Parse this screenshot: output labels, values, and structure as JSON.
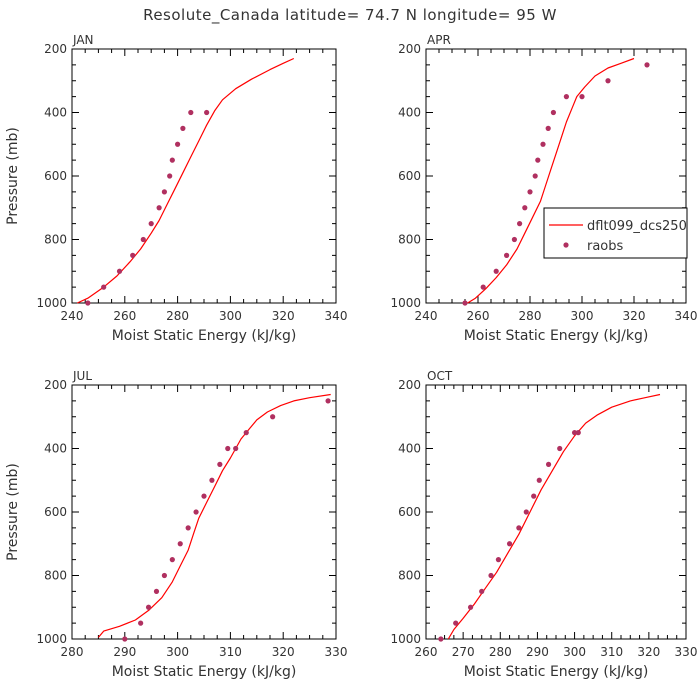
{
  "title": "Resolute_Canada  latitude= 74.7 N longitude= 95 W",
  "legend": {
    "model": "dflt099_dcs250",
    "obs": "raobs"
  },
  "colors": {
    "model": "#ff0000",
    "obs": "#b03060",
    "axis": "#000000",
    "text": "#333333"
  },
  "chart_data": [
    {
      "type": "line",
      "panel": "JAN",
      "xlabel": "Moist Static Energy (kJ/kg)",
      "ylabel": "Pressure (mb)",
      "xlim": [
        240,
        340
      ],
      "ylim": [
        200,
        1000
      ],
      "y_inverted": true,
      "xticks": [
        240,
        260,
        280,
        300,
        320,
        340
      ],
      "yticks": [
        200,
        400,
        600,
        800,
        1000
      ],
      "grid": false,
      "series": [
        {
          "name": "dflt099_dcs250",
          "style": "line",
          "x": [
            242,
            246,
            252,
            257,
            262,
            266,
            270,
            273,
            276,
            279,
            282,
            285,
            288,
            291,
            294,
            297,
            302,
            308,
            315,
            320,
            324
          ],
          "y": [
            1000,
            985,
            950,
            915,
            870,
            830,
            780,
            740,
            690,
            640,
            590,
            540,
            490,
            440,
            395,
            360,
            325,
            295,
            265,
            245,
            230
          ]
        },
        {
          "name": "raobs",
          "style": "marker",
          "x": [
            246,
            252,
            258,
            263,
            267,
            270,
            273,
            275,
            277,
            278,
            280,
            282,
            285,
            291
          ],
          "y": [
            1000,
            950,
            900,
            850,
            800,
            750,
            700,
            650,
            600,
            550,
            500,
            450,
            400,
            400
          ]
        }
      ]
    },
    {
      "type": "line",
      "panel": "APR",
      "xlabel": "Moist Static Energy (kJ/kg)",
      "ylabel": "",
      "xlim": [
        240,
        340
      ],
      "ylim": [
        200,
        1000
      ],
      "y_inverted": true,
      "xticks": [
        240,
        260,
        280,
        300,
        320,
        340
      ],
      "yticks": [
        200,
        400,
        600,
        800,
        1000
      ],
      "grid": false,
      "legend_position": "right",
      "series": [
        {
          "name": "dflt099_dcs250",
          "style": "line",
          "x": [
            256,
            259,
            263,
            267,
            271,
            275,
            278,
            281,
            284,
            286,
            288,
            290,
            292,
            294,
            296,
            298,
            301,
            305,
            310,
            315,
            320
          ],
          "y": [
            1000,
            985,
            955,
            920,
            880,
            830,
            780,
            730,
            680,
            630,
            580,
            530,
            480,
            430,
            390,
            350,
            320,
            285,
            260,
            245,
            230
          ]
        },
        {
          "name": "raobs",
          "style": "marker",
          "x": [
            255,
            262,
            267,
            271,
            274,
            276,
            278,
            280,
            282,
            283,
            285,
            287,
            289,
            294,
            300,
            310,
            325
          ],
          "y": [
            1000,
            950,
            900,
            850,
            800,
            750,
            700,
            650,
            600,
            550,
            500,
            450,
            400,
            350,
            350,
            300,
            250
          ]
        }
      ]
    },
    {
      "type": "line",
      "panel": "JUL",
      "xlabel": "Moist Static Energy (kJ/kg)",
      "ylabel": "Pressure (mb)",
      "xlim": [
        280,
        330
      ],
      "ylim": [
        200,
        1000
      ],
      "y_inverted": true,
      "xticks": [
        280,
        290,
        300,
        310,
        320,
        330
      ],
      "yticks": [
        200,
        400,
        600,
        800,
        1000
      ],
      "grid": false,
      "series": [
        {
          "name": "dflt099_dcs250",
          "style": "line",
          "x": [
            285,
            286,
            289,
            292,
            294.5,
            297,
            299,
            300.5,
            302,
            303,
            304,
            305.5,
            307,
            308.5,
            310,
            311,
            312,
            313.5,
            315,
            317,
            319.5,
            322,
            325,
            329
          ],
          "y": [
            995,
            975,
            960,
            940,
            910,
            870,
            820,
            770,
            720,
            670,
            620,
            570,
            520,
            470,
            430,
            400,
            370,
            340,
            310,
            285,
            265,
            250,
            240,
            230
          ]
        },
        {
          "name": "raobs",
          "style": "marker",
          "x": [
            290,
            293,
            294.5,
            296,
            297.5,
            299,
            300.5,
            302,
            303.5,
            305,
            306.5,
            308,
            309.5,
            311,
            313,
            318,
            328.5
          ],
          "y": [
            1000,
            950,
            900,
            850,
            800,
            750,
            700,
            650,
            600,
            550,
            500,
            450,
            400,
            400,
            350,
            300,
            250
          ]
        }
      ]
    },
    {
      "type": "line",
      "panel": "OCT",
      "xlabel": "Moist Static Energy (kJ/kg)",
      "ylabel": "",
      "xlim": [
        260,
        330
      ],
      "ylim": [
        200,
        1000
      ],
      "y_inverted": true,
      "xticks": [
        260,
        270,
        280,
        290,
        300,
        310,
        320,
        330
      ],
      "yticks": [
        200,
        400,
        600,
        800,
        1000
      ],
      "grid": false,
      "series": [
        {
          "name": "dflt099_dcs250",
          "style": "line",
          "x": [
            266,
            267.5,
            270,
            273,
            276,
            279,
            282,
            285,
            288,
            291,
            294,
            297,
            300,
            303,
            306,
            310,
            315,
            319,
            323
          ],
          "y": [
            1000,
            970,
            935,
            890,
            840,
            790,
            730,
            670,
            600,
            530,
            470,
            410,
            360,
            320,
            295,
            270,
            250,
            240,
            230
          ]
        },
        {
          "name": "raobs",
          "style": "marker",
          "x": [
            264,
            268,
            272,
            275,
            277.5,
            279.5,
            282.5,
            285,
            287,
            289,
            290.5,
            293,
            296,
            300,
            301
          ],
          "y": [
            1000,
            950,
            900,
            850,
            800,
            750,
            700,
            650,
            600,
            550,
            500,
            450,
            400,
            350,
            350
          ]
        }
      ]
    }
  ]
}
